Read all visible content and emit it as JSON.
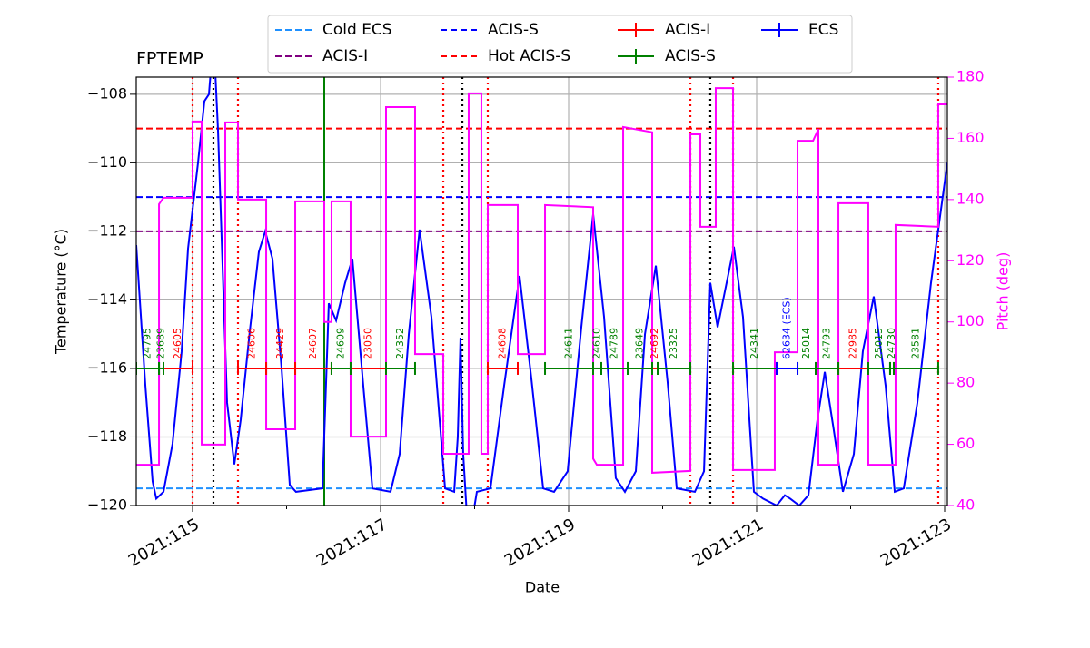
{
  "chart_data": {
    "type": "line",
    "title": "FPTEMP",
    "xlabel": "Date",
    "ylabel": "Temperature (°C)",
    "y2label": "Pitch (deg)",
    "xlim": [
      114.401,
      123.029
    ],
    "ylim": [
      -120,
      -107.5
    ],
    "y2lim": [
      40,
      180
    ],
    "xticks": [
      {
        "value": 115,
        "label": "2021:115"
      },
      {
        "value": 117,
        "label": "2021:117"
      },
      {
        "value": 119,
        "label": "2021:119"
      },
      {
        "value": 121,
        "label": "2021:121"
      },
      {
        "value": 123,
        "label": "2021:123"
      }
    ],
    "xminorticks": [
      116,
      118,
      120,
      122
    ],
    "yticks": [
      {
        "value": -120,
        "label": "−120"
      },
      {
        "value": -118,
        "label": "−118"
      },
      {
        "value": -116,
        "label": "−116"
      },
      {
        "value": -114,
        "label": "−114"
      },
      {
        "value": -112,
        "label": "−112"
      },
      {
        "value": -110,
        "label": "−110"
      },
      {
        "value": -108,
        "label": "−108"
      }
    ],
    "y2ticks": [
      40,
      60,
      80,
      100,
      120,
      140,
      160,
      180
    ],
    "grid": true,
    "y2color": "#ff00ff",
    "series": [
      {
        "color": "#0000ff",
        "x": [
          114.401,
          114.498,
          114.575,
          114.614,
          114.691,
          114.787,
          114.884,
          114.952,
          115.058,
          115.126,
          115.174,
          115.203,
          115.232,
          115.27,
          115.319,
          115.367,
          115.444,
          115.512,
          115.609,
          115.705,
          115.773,
          115.85,
          115.947,
          116.034,
          116.1,
          116.382,
          116.449,
          116.527,
          116.623,
          116.7,
          116.816,
          116.913,
          117.106,
          117.203,
          117.3,
          117.415,
          117.541,
          117.686,
          117.783,
          117.821,
          117.85,
          117.879,
          117.918,
          117.976,
          118.024,
          118.169,
          118.314,
          118.478,
          118.604,
          118.729,
          118.845,
          118.99,
          119.135,
          119.261,
          119.377,
          119.502,
          119.599,
          119.715,
          119.812,
          119.928,
          120.053,
          120.15,
          120.343,
          120.44,
          120.507,
          120.585,
          120.758,
          120.855,
          120.971,
          121.068,
          121.213,
          121.3,
          121.357,
          121.454,
          121.551,
          121.647,
          121.725,
          121.821,
          121.918,
          122.034,
          122.13,
          122.246,
          122.372,
          122.469,
          122.565,
          122.71,
          122.855,
          123.029
        ],
        "values": [
          -112.4,
          -116.5,
          -119.3,
          -119.8,
          -119.6,
          -118.2,
          -115.5,
          -112.5,
          -110.0,
          -108.2,
          -108.0,
          -107.0,
          -106.8,
          -109.0,
          -113.0,
          -117.0,
          -118.8,
          -117.5,
          -114.9,
          -112.6,
          -112.0,
          -112.8,
          -116.0,
          -119.4,
          -119.6,
          -119.5,
          -114.1,
          -114.6,
          -113.5,
          -112.8,
          -116.5,
          -119.5,
          -119.6,
          -118.5,
          -115.0,
          -111.95,
          -114.5,
          -119.5,
          -119.6,
          -118.0,
          -115.1,
          -118.5,
          -120.3,
          -120.4,
          -119.6,
          -119.5,
          -116.5,
          -113.3,
          -116.3,
          -119.5,
          -119.6,
          -119.0,
          -114.8,
          -111.5,
          -114.5,
          -119.2,
          -119.6,
          -119.0,
          -115.0,
          -113.0,
          -116.4,
          -119.5,
          -119.6,
          -119.0,
          -113.5,
          -114.8,
          -112.45,
          -114.5,
          -119.6,
          -119.8,
          -120.0,
          -119.7,
          -119.8,
          -120.0,
          -119.7,
          -117.5,
          -116.1,
          -117.8,
          -119.6,
          -118.5,
          -115.5,
          -113.9,
          -116.5,
          -119.6,
          -119.5,
          -117.0,
          -113.5,
          -110.0
        ]
      },
      {
        "color": "#ff00ff",
        "axis": "y2",
        "x": [
          114.401,
          114.643,
          114.643,
          114.691,
          115.0,
          115.0,
          115.097,
          115.097,
          115.348,
          115.348,
          115.483,
          115.483,
          115.783,
          115.783,
          116.092,
          116.092,
          116.401,
          116.401,
          116.478,
          116.478,
          116.681,
          116.681,
          117.058,
          117.058,
          117.367,
          117.367,
          117.667,
          117.667,
          117.937,
          117.937,
          118.072,
          118.072,
          118.14,
          118.14,
          118.459,
          118.459,
          118.749,
          118.749,
          119.261,
          119.261,
          119.3,
          119.58,
          119.58,
          119.889,
          119.889,
          120.295,
          120.295,
          120.401,
          120.401,
          120.565,
          120.565,
          120.749,
          120.749,
          121.193,
          121.193,
          121.435,
          121.435,
          121.6,
          121.657,
          121.657,
          121.87,
          121.87,
          122.188,
          122.188,
          122.478,
          122.478,
          122.932,
          122.932,
          123.029
        ],
        "values": [
          53.3,
          53.3,
          138.5,
          140.6,
          140.6,
          165.5,
          165.5,
          59.9,
          59.9,
          165.2,
          165.2,
          140.0,
          140.0,
          64.9,
          64.9,
          139.4,
          139.4,
          100,
          100,
          139.4,
          139.4,
          62.5,
          62.5,
          170.2,
          170.2,
          89.5,
          89.5,
          56.9,
          56.9,
          174.7,
          174.7,
          56.9,
          56.9,
          138.2,
          138.2,
          89.5,
          89.5,
          138.2,
          137.5,
          55.3,
          53.3,
          53.3,
          163.7,
          162,
          50.7,
          51.3,
          161.3,
          161.3,
          131.1,
          131.1,
          176.4,
          176.4,
          51.6,
          51.6,
          90.1,
          90.1,
          159.2,
          159.2,
          163,
          53.3,
          53.3,
          138.8,
          138.8,
          53.3,
          53.3,
          131.7,
          131.1,
          171.1,
          171.1
        ]
      }
    ],
    "hlines": [
      {
        "name": "Cold ECS",
        "color": "#1e90ff",
        "value": -119.5
      },
      {
        "name": "ACIS-I",
        "color": "#800080",
        "value": -112
      },
      {
        "name": "ACIS-S",
        "color": "#0000ff",
        "value": -111
      },
      {
        "name": "Hot ACIS-S",
        "color": "#ff0000",
        "value": -109
      }
    ],
    "obsid_groups": [
      {
        "name": "ACIS-I",
        "color": "#ff0000",
        "level": -116,
        "items": [
          {
            "label": "24605",
            "start": 114.691,
            "stop": 115.0
          },
          {
            "label": "24606",
            "start": 115.483,
            "stop": 115.783
          },
          {
            "label": "24429",
            "start": 115.783,
            "stop": 116.092
          },
          {
            "label": "24607",
            "start": 116.092,
            "stop": 116.478
          },
          {
            "label": "23050",
            "start": 116.681,
            "stop": 117.058
          },
          {
            "label": "24608",
            "start": 118.14,
            "stop": 118.459
          },
          {
            "label": "24692",
            "start": 119.889,
            "stop": 119.947
          },
          {
            "label": "22985",
            "start": 121.87,
            "stop": 122.188
          }
        ]
      },
      {
        "name": "ACIS-S",
        "color": "#008000",
        "level": -116,
        "items": [
          {
            "label": "24795",
            "start": 114.401,
            "stop": 114.643
          },
          {
            "label": "23689",
            "start": 114.643,
            "stop": 114.691
          },
          {
            "label": "24609",
            "start": 116.478,
            "stop": 116.681
          },
          {
            "label": "24352",
            "start": 117.058,
            "stop": 117.367
          },
          {
            "label": "24611",
            "start": 118.749,
            "stop": 119.261
          },
          {
            "label": "24610",
            "start": 119.261,
            "stop": 119.348
          },
          {
            "label": "24789",
            "start": 119.348,
            "stop": 119.628
          },
          {
            "label": "23649",
            "start": 119.628,
            "stop": 119.889
          },
          {
            "label": "23325",
            "start": 119.947,
            "stop": 120.295
          },
          {
            "label": "24341",
            "start": 120.749,
            "stop": 121.213
          },
          {
            "label": "25014",
            "start": 121.435,
            "stop": 121.628
          },
          {
            "label": "24793",
            "start": 121.628,
            "stop": 121.87
          },
          {
            "label": "25015",
            "start": 122.188,
            "stop": 122.42
          },
          {
            "label": "24730",
            "start": 122.42,
            "stop": 122.459
          },
          {
            "label": "23581",
            "start": 122.459,
            "stop": 122.932
          }
        ]
      },
      {
        "name": "ECS",
        "color": "#0000ff",
        "level": -116,
        "items": [
          {
            "label": "62634 (ECS)",
            "start": 121.213,
            "stop": 121.435
          }
        ]
      }
    ],
    "vlines": [
      {
        "x": 115.0,
        "color": "#ff0000",
        "style": "dotted"
      },
      {
        "x": 115.483,
        "color": "#ff0000",
        "style": "dotted"
      },
      {
        "x": 117.667,
        "color": "#ff0000",
        "style": "dotted"
      },
      {
        "x": 118.14,
        "color": "#ff0000",
        "style": "dotted"
      },
      {
        "x": 120.295,
        "color": "#ff0000",
        "style": "dotted"
      },
      {
        "x": 120.749,
        "color": "#ff0000",
        "style": "dotted"
      },
      {
        "x": 122.932,
        "color": "#ff0000",
        "style": "dotted"
      },
      {
        "x": 115.222,
        "color": "#000000",
        "style": "dotted"
      },
      {
        "x": 117.87,
        "color": "#000000",
        "style": "dotted"
      },
      {
        "x": 120.507,
        "color": "#000000",
        "style": "dotted"
      },
      {
        "x": 116.401,
        "color": "#008000",
        "style": "solid"
      }
    ]
  }
}
